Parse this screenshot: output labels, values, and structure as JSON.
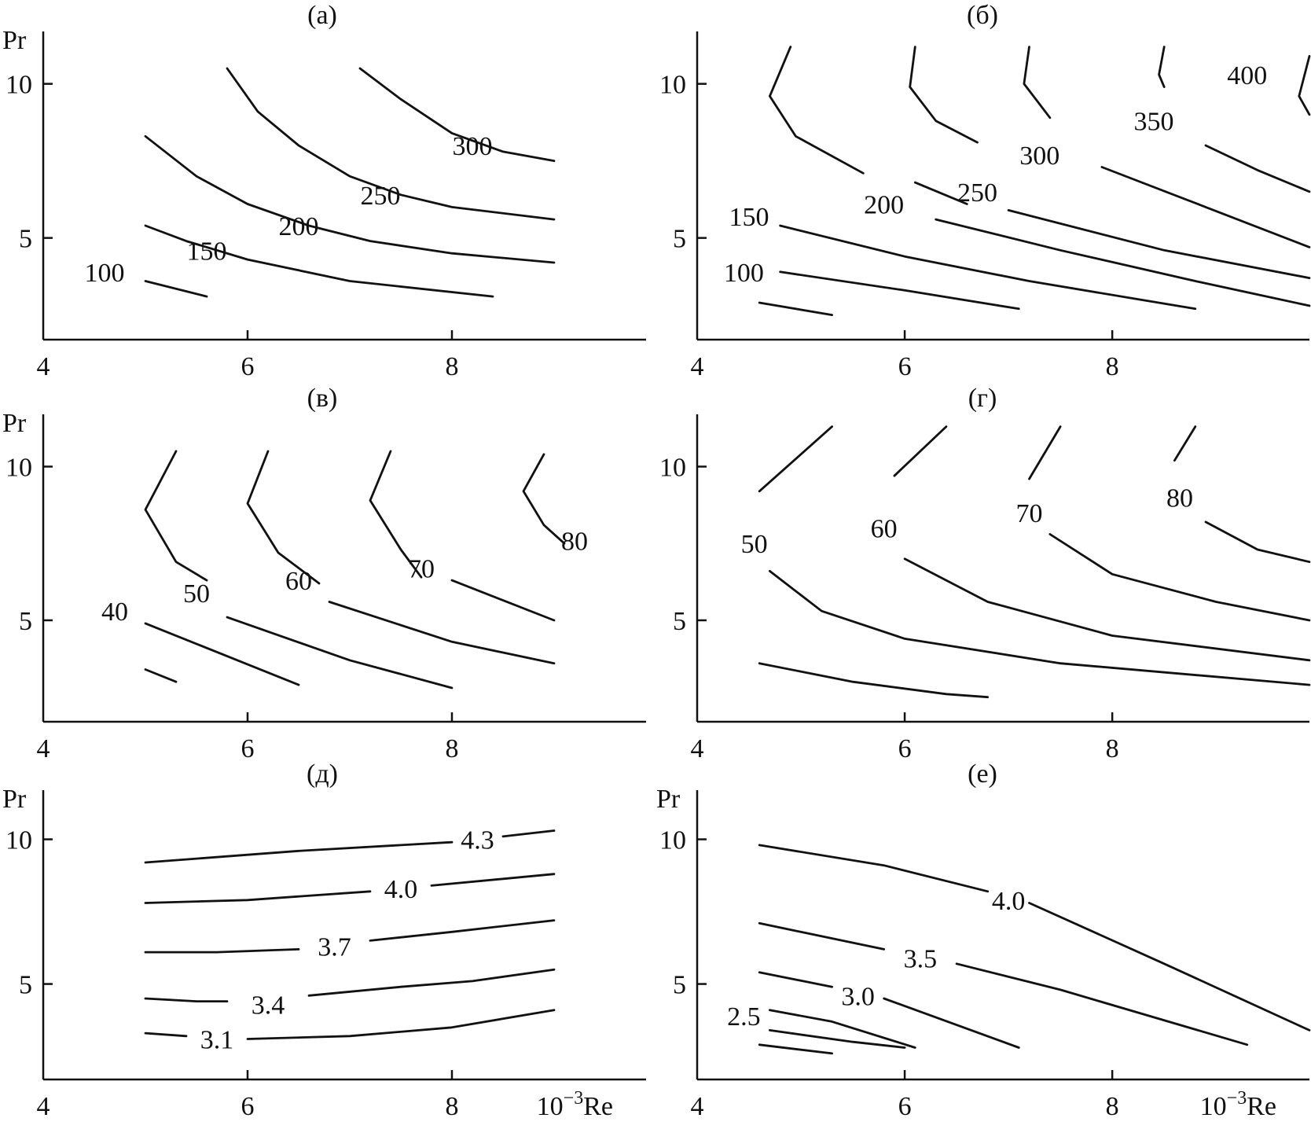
{
  "chart_data": [
    {
      "type": "line",
      "title": "(а)",
      "xlabel": "",
      "ylabel": "Pr",
      "xlim": [
        4,
        9.9
      ],
      "ylim": [
        1.7,
        11.7
      ],
      "x_ticks": [
        "4",
        "6",
        "8"
      ],
      "y_ticks": [
        "5",
        "10"
      ],
      "series": [
        {
          "label": "300",
          "points": [
            [
              7.1,
              10.5
            ],
            [
              7.5,
              9.5
            ],
            [
              8.0,
              8.4
            ],
            [
              8.5,
              7.8
            ],
            [
              9.0,
              7.5
            ]
          ],
          "label_at": [
            8.2,
            8.0
          ]
        },
        {
          "label": "250",
          "points": [
            [
              5.8,
              10.5
            ],
            [
              6.1,
              9.1
            ],
            [
              6.5,
              8.0
            ],
            [
              7.0,
              7.0
            ],
            [
              7.5,
              6.4
            ],
            [
              8.0,
              6.0
            ],
            [
              9.0,
              5.6
            ]
          ],
          "label_at": [
            7.3,
            6.4
          ]
        },
        {
          "label": "200",
          "points": [
            [
              5.0,
              8.3
            ],
            [
              5.5,
              7.0
            ],
            [
              6.0,
              6.1
            ],
            [
              6.6,
              5.4
            ],
            [
              7.2,
              4.9
            ],
            [
              8.0,
              4.5
            ],
            [
              9.0,
              4.2
            ]
          ],
          "label_at": [
            6.5,
            5.4
          ]
        },
        {
          "label": "150",
          "points": [
            [
              5.0,
              5.4
            ],
            [
              5.4,
              4.9
            ],
            [
              6.0,
              4.3
            ],
            [
              7.0,
              3.6
            ],
            [
              8.4,
              3.1
            ]
          ],
          "label_at": [
            5.6,
            4.6
          ]
        },
        {
          "label": "100",
          "points": [
            [
              5.0,
              3.6
            ],
            [
              5.6,
              3.1
            ]
          ],
          "label_at": [
            4.6,
            3.9
          ]
        }
      ]
    },
    {
      "type": "line",
      "title": "(б)",
      "xlabel": "",
      "ylabel": "",
      "xlim": [
        4,
        9.9
      ],
      "ylim": [
        1.7,
        11.7
      ],
      "x_ticks": [
        "4",
        "6",
        "8"
      ],
      "y_ticks": [
        "5",
        "10"
      ],
      "series": [
        {
          "label": "400",
          "points": [
            [
              8.5,
              11.2
            ],
            [
              8.45,
              10.3
            ],
            [
              8.5,
              9.9
            ]
          ],
          "tail": [
            [
              9.9,
              10.9
            ],
            [
              9.8,
              9.6
            ],
            [
              9.9,
              9.0
            ]
          ],
          "label_at": [
            9.3,
            10.3
          ]
        },
        {
          "label": "350",
          "points": [
            [
              7.2,
              11.2
            ],
            [
              7.15,
              10.0
            ],
            [
              7.4,
              8.9
            ]
          ],
          "tail": [
            [
              8.9,
              8.0
            ],
            [
              9.4,
              7.2
            ],
            [
              9.9,
              6.5
            ]
          ],
          "label_at": [
            8.4,
            8.8
          ]
        },
        {
          "label": "300",
          "points": [
            [
              6.1,
              11.2
            ],
            [
              6.05,
              9.9
            ],
            [
              6.3,
              8.8
            ],
            [
              6.7,
              8.1
            ]
          ],
          "tail": [
            [
              7.9,
              7.3
            ],
            [
              8.9,
              6.0
            ],
            [
              9.9,
              4.7
            ]
          ],
          "label_at": [
            7.3,
            7.7
          ]
        },
        {
          "label": "250",
          "points": [
            [
              4.9,
              11.2
            ],
            [
              4.7,
              9.6
            ],
            [
              4.95,
              8.3
            ],
            [
              5.6,
              7.1
            ]
          ],
          "tail": [
            [
              7.0,
              5.9
            ],
            [
              8.5,
              4.6
            ],
            [
              9.9,
              3.7
            ]
          ],
          "label_at": [
            6.7,
            6.5
          ]
        },
        {
          "label": "200",
          "points": [
            [
              6.1,
              6.8
            ],
            [
              6.6,
              6.1
            ]
          ],
          "tail": [
            [
              6.3,
              5.6
            ],
            [
              7.5,
              4.6
            ],
            [
              8.8,
              3.6
            ],
            [
              9.9,
              2.8
            ]
          ],
          "label_at": [
            5.8,
            6.1
          ]
        },
        {
          "label": "150",
          "points": [
            [
              4.8,
              5.4
            ],
            [
              6.0,
              4.4
            ],
            [
              7.2,
              3.6
            ],
            [
              8.8,
              2.7
            ]
          ],
          "label_at": [
            4.5,
            5.7
          ]
        },
        {
          "label": "100",
          "points": [
            [
              4.8,
              3.9
            ],
            [
              6.0,
              3.3
            ],
            [
              7.1,
              2.7
            ]
          ],
          "label_at": [
            4.45,
            3.9
          ]
        },
        {
          "label": "",
          "points": [
            [
              4.6,
              2.9
            ],
            [
              5.3,
              2.5
            ]
          ],
          "label_at": null
        }
      ]
    },
    {
      "type": "line",
      "title": "(в)",
      "xlabel": "",
      "ylabel": "Pr",
      "xlim": [
        4,
        9.9
      ],
      "ylim": [
        1.7,
        11.7
      ],
      "x_ticks": [
        "4",
        "6",
        "8"
      ],
      "y_ticks": [
        "5",
        "10"
      ],
      "series": [
        {
          "label": "80",
          "points": [
            [
              8.9,
              10.4
            ],
            [
              8.7,
              9.2
            ],
            [
              8.9,
              8.1
            ],
            [
              9.1,
              7.5
            ]
          ],
          "label_at": [
            9.2,
            7.6
          ]
        },
        {
          "label": "70",
          "points": [
            [
              7.4,
              10.5
            ],
            [
              7.2,
              8.9
            ],
            [
              7.5,
              7.3
            ],
            [
              7.7,
              6.4
            ]
          ],
          "tail": [
            [
              8.0,
              6.3
            ],
            [
              9.0,
              5.0
            ]
          ],
          "label_at": [
            7.7,
            6.7
          ]
        },
        {
          "label": "60",
          "points": [
            [
              6.2,
              10.5
            ],
            [
              6.0,
              8.8
            ],
            [
              6.3,
              7.2
            ],
            [
              6.7,
              6.2
            ]
          ],
          "tail": [
            [
              6.8,
              5.6
            ],
            [
              8.0,
              4.3
            ],
            [
              9.0,
              3.6
            ]
          ],
          "label_at": [
            6.5,
            6.3
          ]
        },
        {
          "label": "50",
          "points": [
            [
              5.3,
              10.5
            ],
            [
              5.0,
              8.6
            ],
            [
              5.3,
              6.9
            ],
            [
              5.6,
              6.3
            ]
          ],
          "tail": [
            [
              5.8,
              5.1
            ],
            [
              7.0,
              3.7
            ],
            [
              8.0,
              2.8
            ]
          ],
          "label_at": [
            5.5,
            5.9
          ]
        },
        {
          "label": "40",
          "points": [
            [
              5.0,
              4.9
            ],
            [
              5.9,
              3.7
            ],
            [
              6.5,
              2.9
            ]
          ],
          "label_at": [
            4.7,
            5.3
          ]
        },
        {
          "label": "",
          "points": [
            [
              5.0,
              3.4
            ],
            [
              5.3,
              3.0
            ]
          ],
          "label_at": null
        }
      ]
    },
    {
      "type": "line",
      "title": "(г)",
      "xlabel": "",
      "ylabel": "",
      "xlim": [
        4,
        9.9
      ],
      "ylim": [
        1.7,
        11.7
      ],
      "x_ticks": [
        "4",
        "6",
        "8"
      ],
      "y_ticks": [
        "5",
        "10"
      ],
      "series": [
        {
          "label": "80",
          "points": [
            [
              8.8,
              11.3
            ],
            [
              8.6,
              10.2
            ]
          ],
          "tail": [
            [
              8.9,
              8.2
            ],
            [
              9.4,
              7.3
            ],
            [
              9.9,
              6.9
            ]
          ],
          "label_at": [
            8.65,
            9.0
          ]
        },
        {
          "label": "70",
          "points": [
            [
              7.5,
              11.3
            ],
            [
              7.2,
              9.6
            ]
          ],
          "tail": [
            [
              7.4,
              7.8
            ],
            [
              8.0,
              6.5
            ],
            [
              9.0,
              5.6
            ],
            [
              9.9,
              5.0
            ]
          ],
          "label_at": [
            7.2,
            8.5
          ]
        },
        {
          "label": "60",
          "points": [
            [
              6.4,
              11.3
            ],
            [
              5.9,
              9.7
            ]
          ],
          "tail": [
            [
              6.0,
              7.0
            ],
            [
              6.8,
              5.6
            ],
            [
              8.0,
              4.5
            ],
            [
              9.9,
              3.7
            ]
          ],
          "label_at": [
            5.8,
            8.0
          ]
        },
        {
          "label": "50",
          "points": [
            [
              5.3,
              11.3
            ],
            [
              4.6,
              9.2
            ]
          ],
          "tail": [
            [
              4.7,
              6.6
            ],
            [
              5.2,
              5.3
            ],
            [
              6.0,
              4.4
            ],
            [
              7.5,
              3.6
            ],
            [
              9.9,
              2.9
            ]
          ],
          "label_at": [
            4.55,
            7.5
          ]
        },
        {
          "label": "",
          "points": [
            [
              4.6,
              3.6
            ],
            [
              5.5,
              3.0
            ],
            [
              6.4,
              2.6
            ],
            [
              6.8,
              2.5
            ]
          ],
          "label_at": null
        }
      ]
    },
    {
      "type": "line",
      "title": "(д)",
      "xlabel": "10⁻³Re",
      "ylabel": "Pr",
      "xlim": [
        4,
        9.9
      ],
      "ylim": [
        1.7,
        11.7
      ],
      "x_ticks": [
        "4",
        "6",
        "8"
      ],
      "y_ticks": [
        "5",
        "10"
      ],
      "series": [
        {
          "label": "4.3",
          "points": [
            [
              5.0,
              9.2
            ],
            [
              6.5,
              9.6
            ],
            [
              8.0,
              9.9
            ]
          ],
          "tail": [
            [
              8.5,
              10.1
            ],
            [
              9.0,
              10.3
            ]
          ],
          "label_at": [
            8.25,
            10.0
          ]
        },
        {
          "label": "4.0",
          "points": [
            [
              5.0,
              7.8
            ],
            [
              6.0,
              7.9
            ],
            [
              7.2,
              8.2
            ]
          ],
          "tail": [
            [
              7.8,
              8.4
            ],
            [
              9.0,
              8.8
            ]
          ],
          "label_at": [
            7.5,
            8.3
          ]
        },
        {
          "label": "3.7",
          "points": [
            [
              5.0,
              6.1
            ],
            [
              5.7,
              6.1
            ],
            [
              6.5,
              6.2
            ]
          ],
          "tail": [
            [
              7.2,
              6.5
            ],
            [
              8.0,
              6.8
            ],
            [
              9.0,
              7.2
            ]
          ],
          "label_at": [
            6.85,
            6.3
          ]
        },
        {
          "label": "3.4",
          "points": [
            [
              5.0,
              4.5
            ],
            [
              5.5,
              4.4
            ],
            [
              5.8,
              4.4
            ]
          ],
          "tail": [
            [
              6.6,
              4.6
            ],
            [
              7.5,
              4.9
            ],
            [
              8.2,
              5.1
            ],
            [
              9.0,
              5.5
            ]
          ],
          "label_at": [
            6.2,
            4.3
          ]
        },
        {
          "label": "3.1",
          "points": [
            [
              5.0,
              3.3
            ],
            [
              5.4,
              3.2
            ]
          ],
          "tail": [
            [
              6.0,
              3.1
            ],
            [
              7.0,
              3.2
            ],
            [
              8.0,
              3.5
            ],
            [
              9.0,
              4.1
            ]
          ],
          "label_at": [
            5.7,
            3.1
          ]
        }
      ]
    },
    {
      "type": "line",
      "title": "(е)",
      "xlabel": "10⁻³Re",
      "ylabel": "Pr",
      "xlim": [
        4,
        9.9
      ],
      "ylim": [
        1.7,
        11.7
      ],
      "x_ticks": [
        "4",
        "6",
        "8"
      ],
      "y_ticks": [
        "5",
        "10"
      ],
      "series": [
        {
          "label": "4.0",
          "points": [
            [
              4.6,
              9.8
            ],
            [
              5.8,
              9.1
            ],
            [
              6.8,
              8.2
            ]
          ],
          "tail": [
            [
              7.2,
              7.8
            ],
            [
              8.5,
              5.7
            ],
            [
              9.9,
              3.4
            ]
          ],
          "label_at": [
            7.0,
            7.9
          ]
        },
        {
          "label": "3.5",
          "points": [
            [
              4.6,
              7.1
            ],
            [
              5.8,
              6.2
            ]
          ],
          "tail": [
            [
              6.5,
              5.7
            ],
            [
              7.5,
              4.8
            ],
            [
              9.3,
              2.9
            ]
          ],
          "label_at": [
            6.15,
            5.9
          ]
        },
        {
          "label": "3.0",
          "points": [
            [
              4.6,
              5.4
            ],
            [
              5.3,
              4.9
            ]
          ],
          "tail": [
            [
              5.8,
              4.5
            ],
            [
              7.1,
              2.8
            ]
          ],
          "label_at": [
            5.55,
            4.6
          ]
        },
        {
          "label": "2.5",
          "points": [
            [
              4.7,
              4.1
            ],
            [
              5.3,
              3.7
            ],
            [
              6.1,
              2.8
            ]
          ],
          "label_at": [
            4.45,
            3.9
          ]
        },
        {
          "label": "",
          "points": [
            [
              4.7,
              3.4
            ],
            [
              5.5,
              3.0
            ],
            [
              6.0,
              2.8
            ]
          ],
          "label_at": null
        },
        {
          "label": "",
          "points": [
            [
              4.6,
              2.9
            ],
            [
              5.3,
              2.6
            ]
          ],
          "label_at": null
        }
      ]
    }
  ]
}
